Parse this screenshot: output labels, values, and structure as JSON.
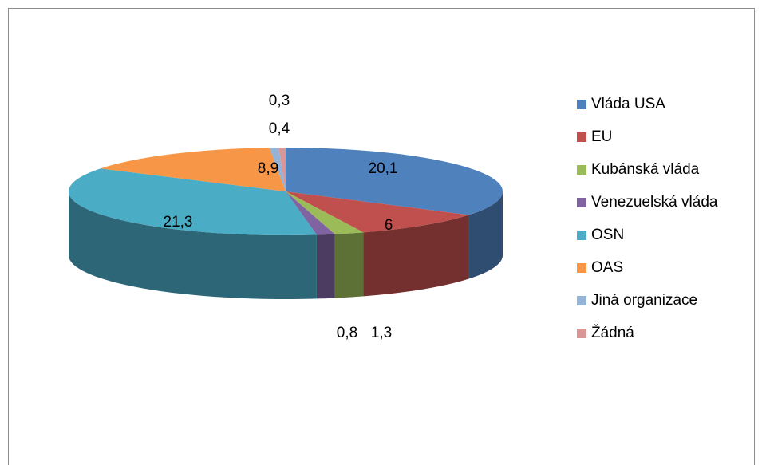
{
  "chart_data": {
    "type": "pie",
    "categories": [
      "Vláda USA",
      "EU",
      "Kubánská vláda",
      "Venezuelská vláda",
      "OSN",
      "OAS",
      "Jiná organizace",
      "Žádná"
    ],
    "values": [
      20.1,
      6,
      1.3,
      0.8,
      21.3,
      8.9,
      0.4,
      0.3
    ],
    "value_labels": [
      "20,1",
      "6",
      "1,3",
      "0,8",
      "21,3",
      "8,9",
      "0,4",
      "0,3"
    ],
    "colors": [
      "#4f81bd",
      "#c0504d",
      "#9bbb59",
      "#8064a2",
      "#4bacc6",
      "#f79646",
      "#95b3d7",
      "#d99694"
    ],
    "legend": "right"
  }
}
